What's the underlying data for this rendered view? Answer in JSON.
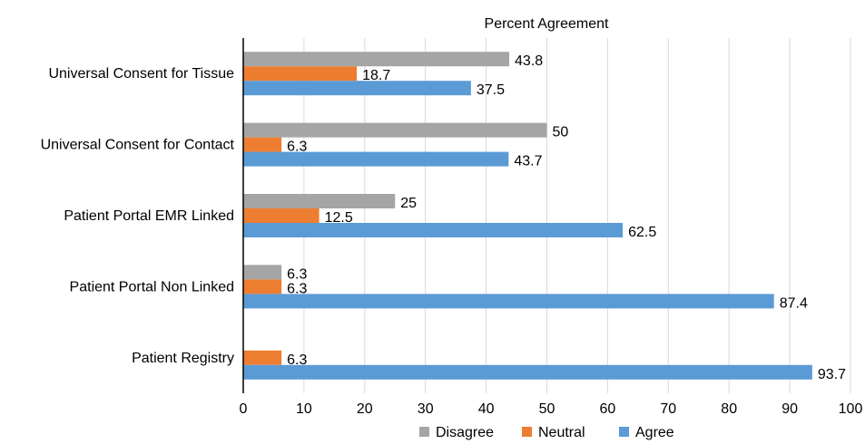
{
  "chart_data": {
    "type": "bar",
    "orientation": "horizontal",
    "title": "Percent Agreement",
    "xlabel": "",
    "ylabel": "",
    "categories": [
      "Universal Consent for Tissue",
      "Universal Consent for Contact",
      "Patient Portal EMR Linked",
      "Patient Portal Non Linked",
      "Patient Registry"
    ],
    "series": [
      {
        "name": "Disagree",
        "color": "#a5a5a5",
        "values": [
          43.8,
          50,
          25,
          6.3,
          null
        ]
      },
      {
        "name": "Neutral",
        "color": "#ed7d31",
        "values": [
          18.7,
          6.3,
          12.5,
          6.3,
          6.3
        ]
      },
      {
        "name": "Agree",
        "color": "#5b9bd5",
        "values": [
          37.5,
          43.7,
          62.5,
          87.4,
          93.7
        ]
      }
    ],
    "xlim": [
      0,
      100
    ],
    "xticks": [
      0,
      10,
      20,
      30,
      40,
      50,
      60,
      70,
      80,
      90,
      100
    ],
    "grid": true,
    "legend_position": "bottom"
  }
}
